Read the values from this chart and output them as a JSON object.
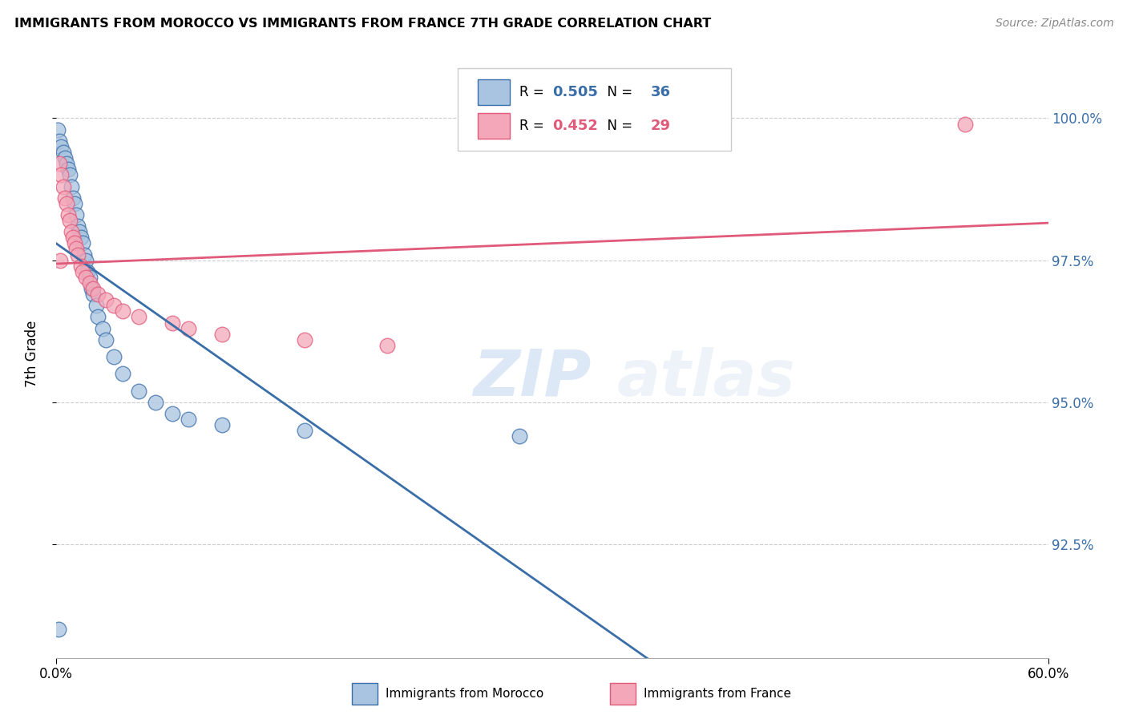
{
  "title": "IMMIGRANTS FROM MOROCCO VS IMMIGRANTS FROM FRANCE 7TH GRADE CORRELATION CHART",
  "source": "Source: ZipAtlas.com",
  "ylabel": "7th Grade",
  "y_ticks": [
    92.5,
    95.0,
    97.5,
    100.0
  ],
  "y_tick_labels": [
    "92.5%",
    "95.0%",
    "97.5%",
    "100.0%"
  ],
  "xlim": [
    0.0,
    60.0
  ],
  "ylim": [
    90.5,
    101.2
  ],
  "legend_morocco": "Immigrants from Morocco",
  "legend_france": "Immigrants from France",
  "R_morocco": 0.505,
  "N_morocco": 36,
  "R_france": 0.452,
  "N_france": 29,
  "color_morocco": "#a8c4e0",
  "color_france": "#f4a7b9",
  "line_color_morocco": "#3a6ea8",
  "line_color_france": "#e05a7a",
  "tick_color": "#3a6ea8",
  "morocco_x": [
    0.1,
    0.2,
    0.3,
    0.4,
    0.5,
    0.6,
    0.7,
    0.8,
    0.9,
    1.0,
    1.1,
    1.2,
    1.3,
    1.4,
    1.5,
    1.6,
    1.7,
    1.8,
    1.9,
    2.0,
    2.1,
    2.2,
    2.4,
    2.5,
    2.8,
    3.0,
    3.5,
    4.0,
    5.0,
    6.0,
    7.0,
    8.0,
    10.0,
    15.0,
    28.0,
    0.15
  ],
  "morocco_y": [
    99.8,
    99.6,
    99.5,
    99.4,
    99.3,
    99.2,
    99.1,
    99.0,
    98.8,
    98.6,
    98.5,
    98.3,
    98.1,
    98.0,
    97.9,
    97.8,
    97.6,
    97.5,
    97.3,
    97.2,
    97.0,
    96.9,
    96.7,
    96.5,
    96.3,
    96.1,
    95.8,
    95.5,
    95.2,
    95.0,
    94.8,
    94.7,
    94.6,
    94.5,
    94.4,
    91.0
  ],
  "france_x": [
    0.2,
    0.3,
    0.4,
    0.5,
    0.6,
    0.7,
    0.8,
    0.9,
    1.0,
    1.1,
    1.2,
    1.3,
    1.5,
    1.6,
    1.8,
    2.0,
    2.2,
    2.5,
    3.0,
    3.5,
    4.0,
    5.0,
    7.0,
    8.0,
    10.0,
    15.0,
    20.0,
    55.0,
    0.25
  ],
  "france_y": [
    99.2,
    99.0,
    98.8,
    98.6,
    98.5,
    98.3,
    98.2,
    98.0,
    97.9,
    97.8,
    97.7,
    97.6,
    97.4,
    97.3,
    97.2,
    97.1,
    97.0,
    96.9,
    96.8,
    96.7,
    96.6,
    96.5,
    96.4,
    96.3,
    96.2,
    96.1,
    96.0,
    99.9,
    97.5
  ],
  "watermark_zip": "ZIP",
  "watermark_atlas": "atlas",
  "background_color": "#ffffff",
  "grid_color": "#cccccc"
}
